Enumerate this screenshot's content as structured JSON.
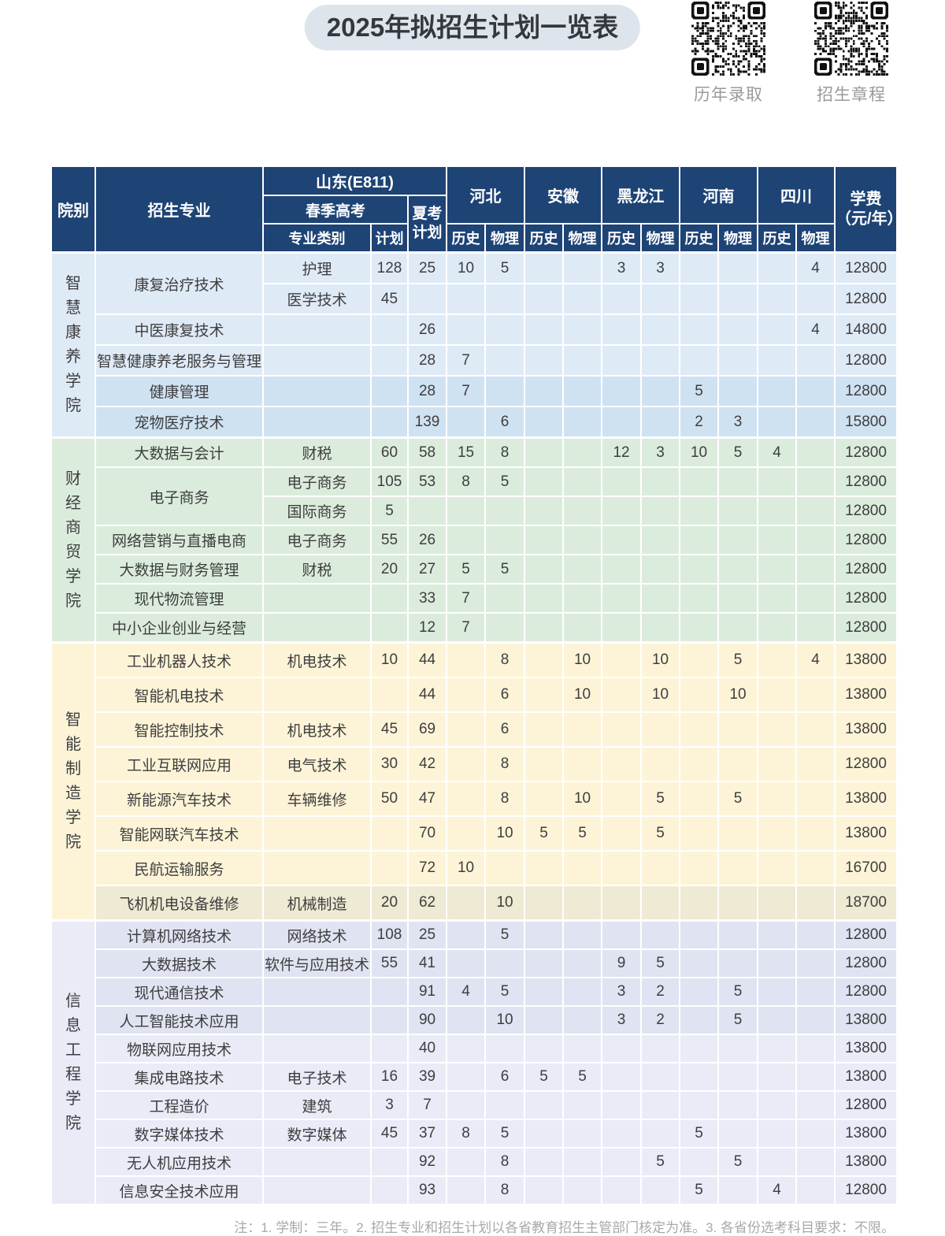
{
  "page": {
    "title": "2025年拟招生计划一览表",
    "qr_codes": [
      {
        "label": "历年录取"
      },
      {
        "label": "招生章程"
      }
    ],
    "footnote": "注：1. 学制：三年。2. 招生专业和招生计划以各省教育招生主管部门核定为准。3. 各省份选考科目要求：不限。",
    "colors": {
      "header_navy": "#1e4375",
      "title_pill": "#dee4eb"
    }
  },
  "table": {
    "header": {
      "college": "院别",
      "major": "招生专业",
      "shandong": "山东(E811)",
      "spring_exam": "春季高考",
      "category": "专业类别",
      "plan": "计划",
      "summer_plan": "夏考\n计划",
      "tuition": "学费\n（元/年）",
      "provinces": [
        "河北",
        "安徽",
        "黑龙江",
        "河南",
        "四川"
      ],
      "subjects": [
        "历史",
        "物理"
      ]
    },
    "groups": [
      {
        "college": "智慧康养学院",
        "colors": {
          "light": "#dfeaf7",
          "dark": "#cfe2f2"
        },
        "rows": [
          {
            "major": "康复治疗技术",
            "major_rowspan": 2,
            "category": "护理",
            "plan": "128",
            "summer": "25",
            "cells": [
              "10",
              "5",
              "",
              "",
              "3",
              "3",
              "",
              "",
              "",
              "4"
            ],
            "tuition": "12800",
            "shade": "light"
          },
          {
            "category": "医学技术",
            "plan": "45",
            "summer": "",
            "cells": [],
            "tuition": "12800",
            "shade": "light"
          },
          {
            "major": "中医康复技术",
            "category": "",
            "plan": "",
            "summer": "26",
            "cells": [
              "",
              "",
              "",
              "",
              "",
              "",
              "",
              "",
              "",
              "4"
            ],
            "tuition": "14800",
            "shade": "light"
          },
          {
            "major": "智慧健康养老服务与管理",
            "category": "",
            "plan": "",
            "summer": "28",
            "cells": [
              "7",
              "",
              "",
              "",
              "",
              "",
              "",
              "",
              "",
              ""
            ],
            "tuition": "12800",
            "shade": "light"
          },
          {
            "major": "健康管理",
            "category": "",
            "plan": "",
            "summer": "28",
            "cells": [
              "7",
              "",
              "",
              "",
              "",
              "",
              "5",
              "",
              "",
              ""
            ],
            "tuition": "12800",
            "shade": "dark"
          },
          {
            "major": "宠物医疗技术",
            "category": "",
            "plan": "",
            "summer": "139",
            "cells": [
              "",
              "6",
              "",
              "",
              "",
              "",
              "2",
              "3",
              "",
              ""
            ],
            "tuition": "15800",
            "shade": "dark"
          }
        ]
      },
      {
        "college": "财经商贸学院",
        "colors": {
          "light": "#dbecdd",
          "dark": "#dbecdd"
        },
        "rows": [
          {
            "major": "大数据与会计",
            "category": "财税",
            "plan": "60",
            "summer": "58",
            "cells": [
              "15",
              "8",
              "",
              "",
              "12",
              "3",
              "10",
              "5",
              "4",
              ""
            ],
            "tuition": "12800",
            "shade": "light"
          },
          {
            "major": "电子商务",
            "major_rowspan": 2,
            "category": "电子商务",
            "plan": "105",
            "summer": "53",
            "cells": [
              "8",
              "5",
              "",
              "",
              "",
              "",
              "",
              "",
              "",
              ""
            ],
            "tuition": "12800",
            "shade": "light"
          },
          {
            "category": "国际商务",
            "plan": "5",
            "summer": "",
            "cells": [],
            "tuition": "12800",
            "shade": "light"
          },
          {
            "major": "网络营销与直播电商",
            "category": "电子商务",
            "plan": "55",
            "summer": "26",
            "cells": [],
            "tuition": "12800",
            "shade": "light"
          },
          {
            "major": "大数据与财务管理",
            "category": "财税",
            "plan": "20",
            "summer": "27",
            "cells": [
              "5",
              "5",
              "",
              "",
              "",
              "",
              "",
              "",
              "",
              ""
            ],
            "tuition": "12800",
            "shade": "light"
          },
          {
            "major": "现代物流管理",
            "category": "",
            "plan": "",
            "summer": "33",
            "cells": [
              "7",
              "",
              "",
              "",
              "",
              "",
              "",
              "",
              "",
              ""
            ],
            "tuition": "12800",
            "shade": "light"
          },
          {
            "major": "中小企业创业与经营",
            "category": "",
            "plan": "",
            "summer": "12",
            "cells": [
              "7",
              "",
              "",
              "",
              "",
              "",
              "",
              "",
              "",
              ""
            ],
            "tuition": "12800",
            "shade": "light"
          }
        ]
      },
      {
        "college": "智能制造学院",
        "colors": {
          "light": "#fdf4d8",
          "dark": "#eeead3"
        },
        "rows": [
          {
            "major": "工业机器人技术",
            "category": "机电技术",
            "plan": "10",
            "summer": "44",
            "cells": [
              "",
              "8",
              "",
              "10",
              "",
              "10",
              "",
              "5",
              "",
              "4"
            ],
            "tuition": "13800",
            "shade": "light"
          },
          {
            "major": "智能机电技术",
            "category": "",
            "plan": "",
            "summer": "44",
            "cells": [
              "",
              "6",
              "",
              "10",
              "",
              "10",
              "",
              "10",
              "",
              ""
            ],
            "tuition": "13800",
            "shade": "light"
          },
          {
            "major": "智能控制技术",
            "category": "机电技术",
            "plan": "45",
            "summer": "69",
            "cells": [
              "",
              "6",
              "",
              "",
              "",
              "",
              "",
              "",
              "",
              ""
            ],
            "tuition": "13800",
            "shade": "light"
          },
          {
            "major": "工业互联网应用",
            "category": "电气技术",
            "plan": "30",
            "summer": "42",
            "cells": [
              "",
              "8",
              "",
              "",
              "",
              "",
              "",
              "",
              "",
              ""
            ],
            "tuition": "12800",
            "shade": "light"
          },
          {
            "major": "新能源汽车技术",
            "category": "车辆维修",
            "plan": "50",
            "summer": "47",
            "cells": [
              "",
              "8",
              "",
              "10",
              "",
              "5",
              "",
              "5",
              "",
              ""
            ],
            "tuition": "13800",
            "shade": "light"
          },
          {
            "major": "智能网联汽车技术",
            "category": "",
            "plan": "",
            "summer": "70",
            "cells": [
              "",
              "10",
              "5",
              "5",
              "",
              "5",
              "",
              "",
              "",
              ""
            ],
            "tuition": "13800",
            "shade": "light"
          },
          {
            "major": "民航运输服务",
            "category": "",
            "plan": "",
            "summer": "72",
            "cells": [
              "10",
              "",
              "",
              "",
              "",
              "",
              "",
              "",
              "",
              ""
            ],
            "tuition": "16700",
            "shade": "light"
          },
          {
            "major": "飞机机电设备维修",
            "category": "机械制造",
            "plan": "20",
            "summer": "62",
            "cells": [
              "",
              "10",
              "",
              "",
              "",
              "",
              "",
              "",
              "",
              ""
            ],
            "tuition": "18700",
            "shade": "dark"
          }
        ]
      },
      {
        "college": "信息工程学院",
        "colors": {
          "light": "#e9ebf7",
          "dark": "#e0e3f1"
        },
        "rows": [
          {
            "major": "计算机网络技术",
            "category": "网络技术",
            "plan": "108",
            "summer": "25",
            "cells": [
              "",
              "5",
              "",
              "",
              "",
              "",
              "",
              "",
              "",
              ""
            ],
            "tuition": "12800",
            "shade": "dark"
          },
          {
            "major": "大数据技术",
            "category": "软件与应用技术",
            "plan": "55",
            "summer": "41",
            "cells": [
              "",
              "",
              "",
              "",
              "9",
              "5",
              "",
              "",
              "",
              ""
            ],
            "tuition": "12800",
            "shade": "dark"
          },
          {
            "major": "现代通信技术",
            "category": "",
            "plan": "",
            "summer": "91",
            "cells": [
              "4",
              "5",
              "",
              "",
              "3",
              "2",
              "",
              "5",
              "",
              ""
            ],
            "tuition": "12800",
            "shade": "dark"
          },
          {
            "major": "人工智能技术应用",
            "category": "",
            "plan": "",
            "summer": "90",
            "cells": [
              "",
              "10",
              "",
              "",
              "3",
              "2",
              "",
              "5",
              "",
              ""
            ],
            "tuition": "13800",
            "shade": "dark"
          },
          {
            "major": "物联网应用技术",
            "category": "",
            "plan": "",
            "summer": "40",
            "cells": [],
            "tuition": "13800",
            "shade": "light"
          },
          {
            "major": "集成电路技术",
            "category": "电子技术",
            "plan": "16",
            "summer": "39",
            "cells": [
              "",
              "6",
              "5",
              "5",
              "",
              "",
              "",
              "",
              "",
              ""
            ],
            "tuition": "13800",
            "shade": "light"
          },
          {
            "major": "工程造价",
            "category": "建筑",
            "plan": "3",
            "summer": "7",
            "cells": [],
            "tuition": "12800",
            "shade": "light"
          },
          {
            "major": "数字媒体技术",
            "category": "数字媒体",
            "plan": "45",
            "summer": "37",
            "cells": [
              "8",
              "5",
              "",
              "",
              "",
              "",
              "5",
              "",
              "",
              ""
            ],
            "tuition": "13800",
            "shade": "light"
          },
          {
            "major": "无人机应用技术",
            "category": "",
            "plan": "",
            "summer": "92",
            "cells": [
              "",
              "8",
              "",
              "",
              "",
              "5",
              "",
              "5",
              "",
              ""
            ],
            "tuition": "13800",
            "shade": "light"
          },
          {
            "major": "信息安全技术应用",
            "category": "",
            "plan": "",
            "summer": "93",
            "cells": [
              "",
              "8",
              "",
              "",
              "",
              "",
              "5",
              "",
              "4",
              ""
            ],
            "tuition": "12800",
            "shade": "light"
          }
        ]
      }
    ]
  }
}
